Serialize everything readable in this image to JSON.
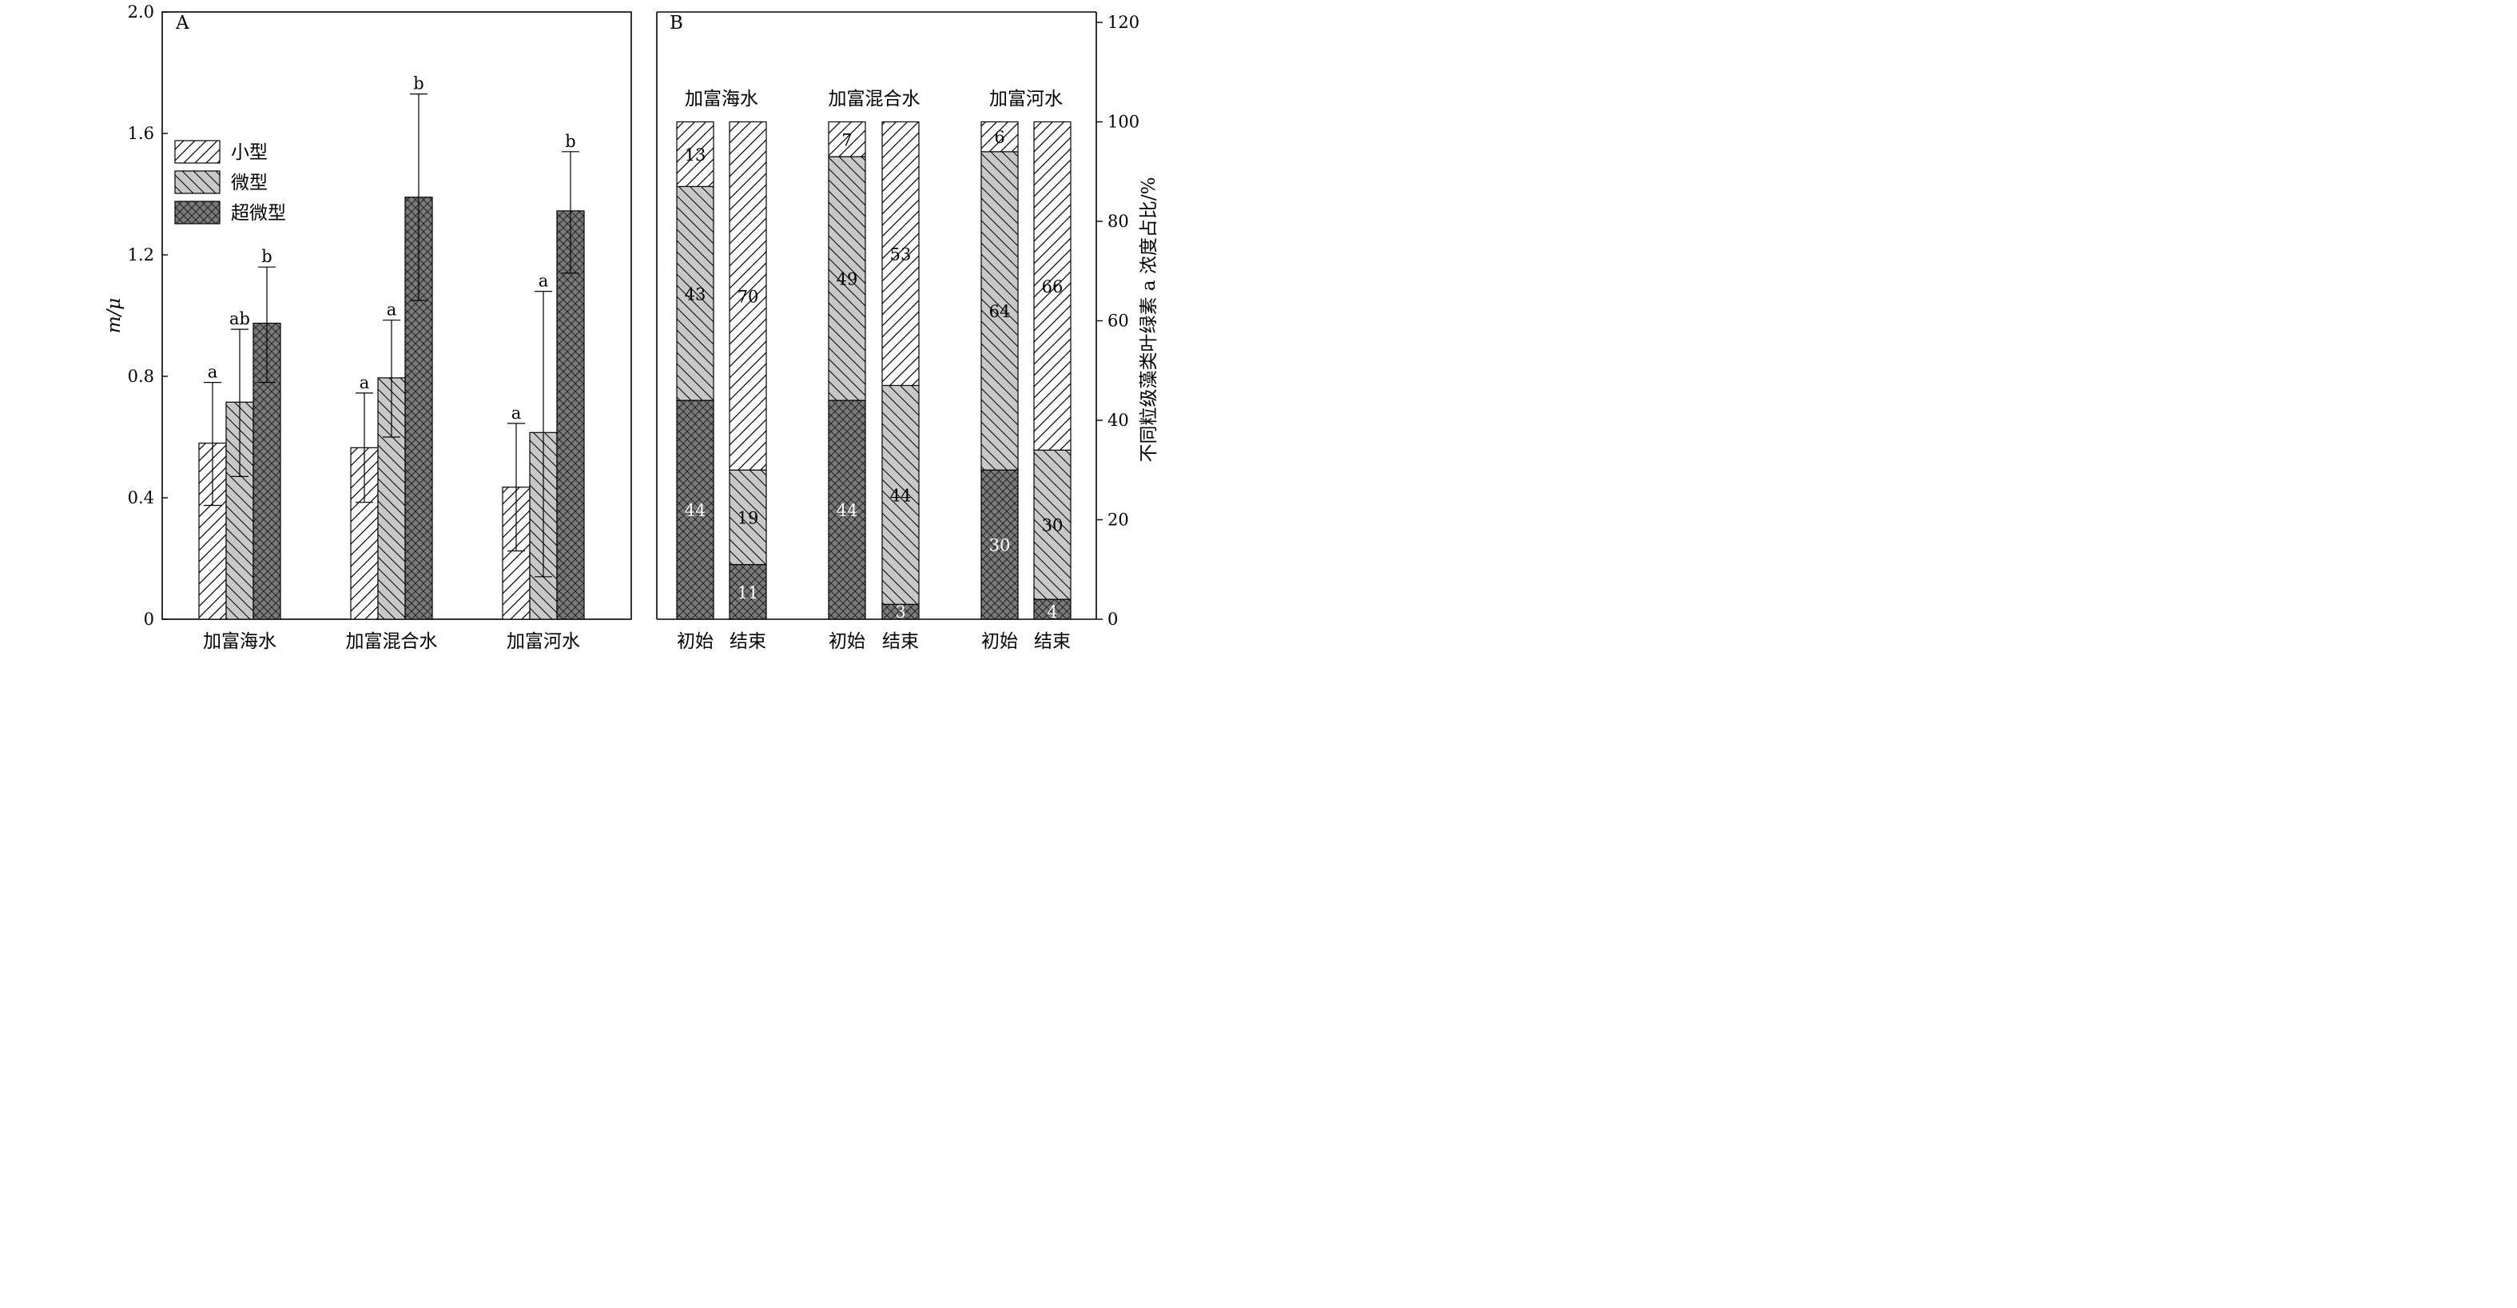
{
  "chart_data": [
    {
      "type": "bar",
      "panel_label": "A",
      "ylabel": "m/μ",
      "ylim": [
        0,
        2.0
      ],
      "yticks": [
        "0",
        "0.4",
        "0.8",
        "1.2",
        "1.6",
        "2.0"
      ],
      "ytick_values": [
        0,
        0.4,
        0.8,
        1.2,
        1.6,
        2.0
      ],
      "categories": [
        "加富海水",
        "加富混合水",
        "加富河水"
      ],
      "series": [
        {
          "name": "小型",
          "pattern": "hatch-fwd",
          "values": [
            0.58,
            0.565,
            0.435
          ],
          "err_high": [
            0.78,
            0.745,
            0.645
          ],
          "err_low": [
            0.375,
            0.385,
            0.225
          ],
          "letters": [
            "a",
            "a",
            "a"
          ]
        },
        {
          "name": "微型",
          "pattern": "hatch-back",
          "values": [
            0.715,
            0.795,
            0.615
          ],
          "err_high": [
            0.955,
            0.985,
            1.08
          ],
          "err_low": [
            0.47,
            0.6,
            0.14
          ],
          "letters": [
            "ab",
            "a",
            "a"
          ]
        },
        {
          "name": "超微型",
          "pattern": "crosshatch",
          "values": [
            0.975,
            1.39,
            1.345
          ],
          "err_high": [
            1.16,
            1.73,
            1.54
          ],
          "err_low": [
            0.78,
            1.05,
            1.14
          ],
          "letters": [
            "b",
            "b",
            "b"
          ]
        }
      ],
      "legend": {
        "placement": "upper-left",
        "entries": [
          "小型",
          "微型",
          "超微型"
        ]
      },
      "grid": false
    },
    {
      "type": "stacked-bar",
      "panel_label": "B",
      "ylabel": "不同粒级藻类叶绿素 a 浓度占比/%",
      "ylim": [
        0,
        120
      ],
      "yticks": [
        "0",
        "20",
        "40",
        "60",
        "80",
        "100",
        "120"
      ],
      "ytick_values": [
        0,
        20,
        40,
        60,
        80,
        100,
        120
      ],
      "groups": [
        "加富海水",
        "加富混合水",
        "加富河水"
      ],
      "bars": [
        {
          "group": "加富海水",
          "label": "初始",
          "超微型": 44,
          "微型": 43,
          "小型": 13
        },
        {
          "group": "加富海水",
          "label": "结束",
          "超微型": 11,
          "微型": 19,
          "小型": 70
        },
        {
          "group": "加富混合水",
          "label": "初始",
          "超微型": 44,
          "微型": 49,
          "小型": 7
        },
        {
          "group": "加富混合水",
          "label": "结束",
          "超微型": 3,
          "微型": 44,
          "小型": 53
        },
        {
          "group": "加富河水",
          "label": "初始",
          "超微型": 30,
          "微型": 64,
          "小型": 6
        },
        {
          "group": "加富河水",
          "label": "结束",
          "超微型": 4,
          "微型": 30,
          "小型": 66
        }
      ],
      "series_order_bottom_to_top": [
        "超微型",
        "微型",
        "小型"
      ],
      "grid": false
    }
  ],
  "colors": {
    "hatch_line": "#000000",
    "micro_fill": "#c8c8c8",
    "pico_fill": "#7a7a7a",
    "white_text": "#ffffff"
  }
}
